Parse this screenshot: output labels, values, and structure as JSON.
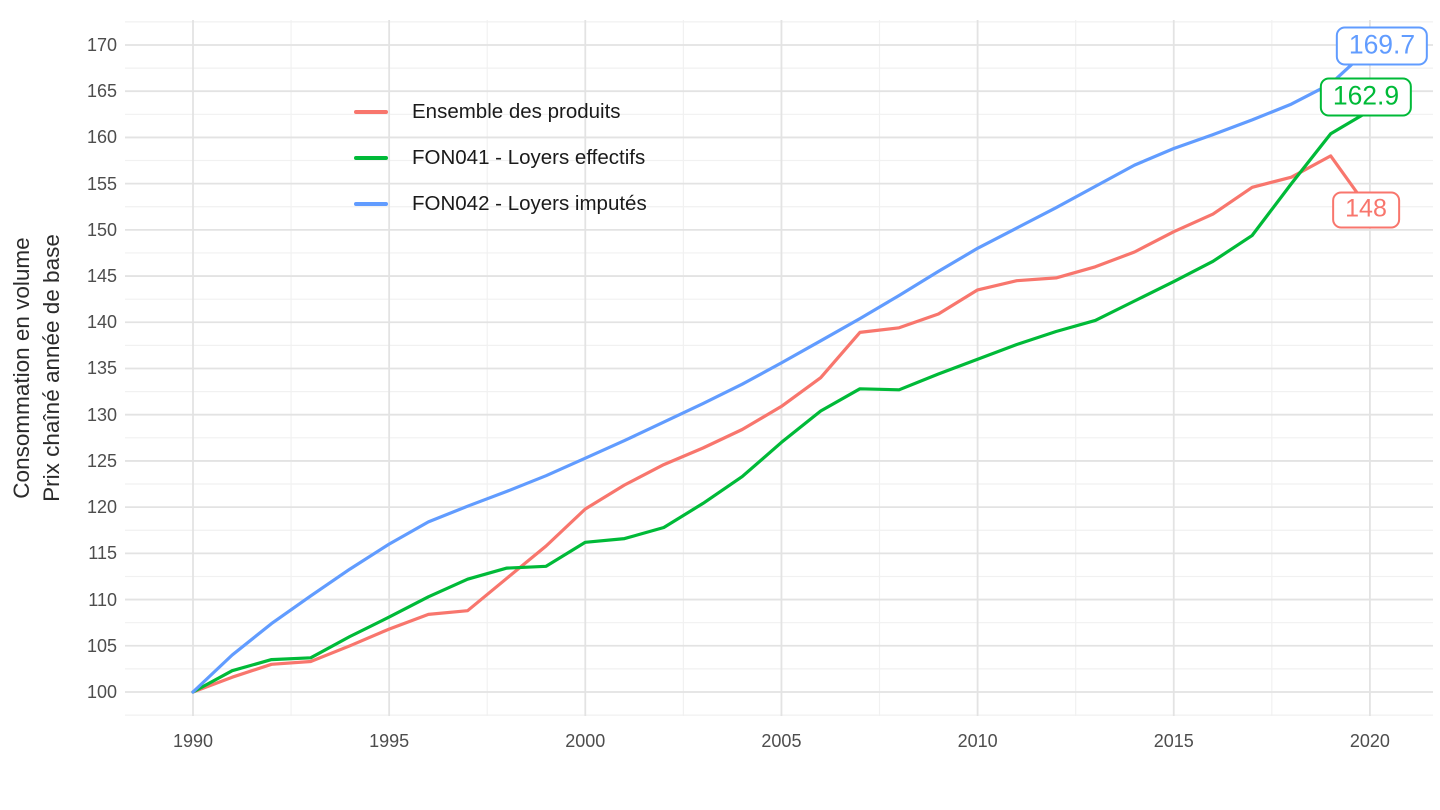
{
  "chart_data": {
    "type": "line",
    "title": "",
    "xlabel": "",
    "ylabel_lines": [
      "Consommation en volume",
      "Prix chaîné année de base"
    ],
    "x": [
      1990,
      1991,
      1992,
      1993,
      1994,
      1995,
      1996,
      1997,
      1998,
      1999,
      2000,
      2001,
      2002,
      2003,
      2004,
      2005,
      2006,
      2007,
      2008,
      2009,
      2010,
      2011,
      2012,
      2013,
      2014,
      2015,
      2016,
      2017,
      2018,
      2019,
      2020
    ],
    "x_ticks": [
      1990,
      1995,
      2000,
      2005,
      2010,
      2015,
      2020
    ],
    "y_ticks": [
      100,
      105,
      110,
      115,
      120,
      125,
      130,
      135,
      140,
      145,
      150,
      155,
      160,
      165,
      170
    ],
    "xlim": [
      1988.3,
      2021.6
    ],
    "ylim": [
      97.5,
      172.5
    ],
    "grid": {
      "on": true,
      "major_color": "#e3e3e3",
      "minor_color": "#f1f1f1",
      "background": "#ffffff"
    },
    "legend_position": "inside-top-left",
    "series": [
      {
        "name": "Ensemble des produits",
        "color": "#F8766D",
        "values": [
          100,
          101.6,
          103,
          103.3,
          105,
          106.8,
          108.4,
          108.8,
          112.3,
          115.8,
          119.8,
          122.4,
          124.6,
          126.4,
          128.4,
          130.9,
          134,
          138.9,
          139.4,
          140.9,
          143.5,
          144.5,
          144.8,
          146,
          147.6,
          149.8,
          151.7,
          154.6,
          155.7,
          158,
          148
        ]
      },
      {
        "name": "FON041 - Loyers effectifs",
        "color": "#00BA38",
        "values": [
          100,
          102.3,
          103.5,
          103.7,
          106,
          108.1,
          110.3,
          112.2,
          113.4,
          113.6,
          116.2,
          116.6,
          117.8,
          120.4,
          123.3,
          127,
          130.4,
          132.8,
          132.7,
          134.4,
          136,
          137.6,
          139,
          140.2,
          142.3,
          144.4,
          146.6,
          149.4,
          155,
          160.4,
          162.9
        ]
      },
      {
        "name": "FON042 - Loyers imputés",
        "color": "#619CFF",
        "values": [
          100,
          104,
          107.4,
          110.4,
          113.3,
          116,
          118.4,
          120.1,
          121.7,
          123.4,
          125.3,
          127.2,
          129.2,
          131.2,
          133.3,
          135.6,
          138,
          140.4,
          142.9,
          145.5,
          148,
          150.2,
          152.4,
          154.7,
          157,
          158.8,
          160.3,
          161.9,
          163.6,
          165.8,
          169.7
        ]
      }
    ],
    "end_labels": [
      {
        "text": "169.7",
        "series": "FON042 - Loyers imputés",
        "color": "#619CFF"
      },
      {
        "text": "162.9",
        "series": "FON041 - Loyers effectifs",
        "color": "#00BA38"
      },
      {
        "text": "148",
        "series": "Ensemble des produits",
        "color": "#F8766D"
      }
    ]
  },
  "axis_style": {
    "tick_color": "#4d4d4d"
  }
}
